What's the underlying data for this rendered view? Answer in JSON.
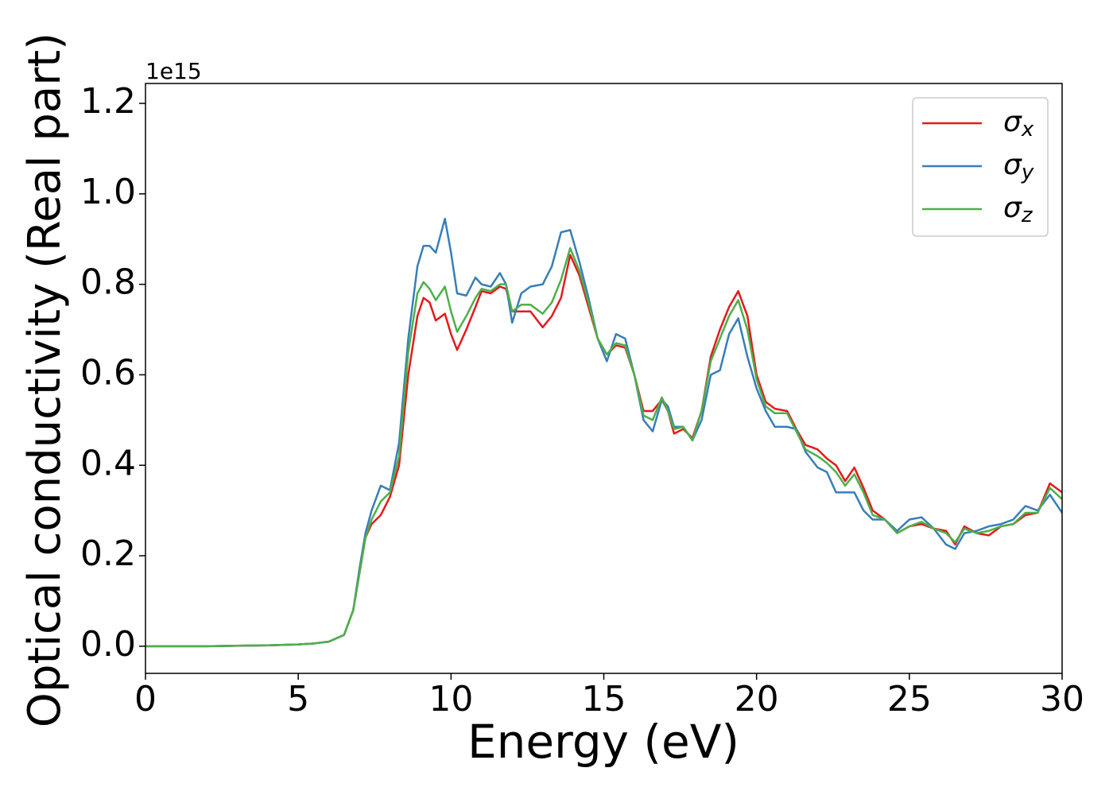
{
  "chart_data": {
    "type": "line",
    "offset_label": "1e15",
    "xlabel": "Energy (eV)",
    "ylabel": "Optical conductivity (Real part)",
    "xlim": [
      0,
      30
    ],
    "ylim": [
      -0.06,
      1.244
    ],
    "xticks": [
      0,
      5,
      10,
      15,
      20,
      25,
      30
    ],
    "yticks": [
      {
        "value": 0,
        "label": "0.0"
      },
      0.2,
      0.4,
      0.6,
      0.8,
      {
        "value": 1,
        "label": "1.0"
      },
      1.2
    ],
    "legend": "upper right",
    "x": [
      0,
      1,
      2,
      3,
      4,
      5,
      5.5,
      6,
      6.5,
      6.8,
      7,
      7.2,
      7.4,
      7.7,
      8,
      8.3,
      8.6,
      8.9,
      9.1,
      9.3,
      9.5,
      9.8,
      10,
      10.2,
      10.5,
      10.8,
      11,
      11.3,
      11.6,
      11.8,
      12,
      12.3,
      12.6,
      13,
      13.3,
      13.6,
      13.9,
      14.2,
      14.5,
      14.8,
      15.1,
      15.4,
      15.7,
      16,
      16.3,
      16.6,
      16.9,
      17.1,
      17.3,
      17.6,
      17.9,
      18.2,
      18.5,
      18.8,
      19.1,
      19.4,
      19.7,
      20,
      20.3,
      20.6,
      21,
      21.3,
      21.6,
      22,
      22.3,
      22.6,
      22.9,
      23.2,
      23.5,
      23.8,
      24.2,
      24.6,
      25,
      25.4,
      25.8,
      26.2,
      26.5,
      26.8,
      27.2,
      27.6,
      28,
      28.4,
      28.8,
      29.2,
      29.6,
      30
    ],
    "series": [
      {
        "name": "σx",
        "color": "#e41a1c",
        "values": [
          0,
          0,
          0,
          0.001,
          0.002,
          0.004,
          0.006,
          0.01,
          0.025,
          0.08,
          0.16,
          0.24,
          0.27,
          0.29,
          0.33,
          0.4,
          0.6,
          0.73,
          0.77,
          0.76,
          0.72,
          0.735,
          0.69,
          0.655,
          0.7,
          0.75,
          0.785,
          0.78,
          0.795,
          0.79,
          0.74,
          0.74,
          0.74,
          0.705,
          0.73,
          0.77,
          0.865,
          0.82,
          0.75,
          0.68,
          0.645,
          0.665,
          0.66,
          0.6,
          0.52,
          0.52,
          0.545,
          0.52,
          0.47,
          0.48,
          0.46,
          0.52,
          0.64,
          0.7,
          0.75,
          0.785,
          0.73,
          0.6,
          0.54,
          0.525,
          0.52,
          0.48,
          0.445,
          0.435,
          0.415,
          0.4,
          0.365,
          0.395,
          0.35,
          0.3,
          0.28,
          0.25,
          0.265,
          0.27,
          0.26,
          0.255,
          0.225,
          0.265,
          0.25,
          0.245,
          0.265,
          0.27,
          0.29,
          0.295,
          0.36,
          0.34
        ]
      },
      {
        "name": "σy",
        "color": "#377eb8",
        "values": [
          0,
          0,
          0,
          0.001,
          0.002,
          0.004,
          0.006,
          0.01,
          0.025,
          0.08,
          0.17,
          0.25,
          0.3,
          0.355,
          0.345,
          0.45,
          0.68,
          0.84,
          0.885,
          0.885,
          0.87,
          0.945,
          0.87,
          0.78,
          0.775,
          0.815,
          0.8,
          0.795,
          0.825,
          0.8,
          0.715,
          0.78,
          0.795,
          0.8,
          0.84,
          0.915,
          0.92,
          0.85,
          0.77,
          0.68,
          0.63,
          0.69,
          0.68,
          0.6,
          0.5,
          0.475,
          0.545,
          0.53,
          0.485,
          0.485,
          0.455,
          0.5,
          0.6,
          0.61,
          0.69,
          0.725,
          0.64,
          0.57,
          0.52,
          0.485,
          0.485,
          0.48,
          0.43,
          0.395,
          0.385,
          0.34,
          0.34,
          0.34,
          0.3,
          0.28,
          0.28,
          0.255,
          0.28,
          0.285,
          0.26,
          0.225,
          0.215,
          0.25,
          0.255,
          0.265,
          0.27,
          0.28,
          0.31,
          0.3,
          0.335,
          0.295
        ]
      },
      {
        "name": "σz",
        "color": "#4daf4a",
        "values": [
          0,
          0,
          0,
          0.001,
          0.002,
          0.004,
          0.006,
          0.01,
          0.025,
          0.08,
          0.16,
          0.24,
          0.28,
          0.32,
          0.34,
          0.42,
          0.65,
          0.78,
          0.805,
          0.79,
          0.765,
          0.795,
          0.74,
          0.695,
          0.73,
          0.77,
          0.79,
          0.785,
          0.8,
          0.8,
          0.74,
          0.755,
          0.755,
          0.735,
          0.76,
          0.81,
          0.88,
          0.83,
          0.76,
          0.68,
          0.645,
          0.67,
          0.665,
          0.6,
          0.51,
          0.5,
          0.55,
          0.52,
          0.48,
          0.485,
          0.455,
          0.52,
          0.63,
          0.68,
          0.73,
          0.765,
          0.7,
          0.59,
          0.53,
          0.515,
          0.515,
          0.475,
          0.435,
          0.42,
          0.405,
          0.385,
          0.355,
          0.38,
          0.34,
          0.29,
          0.28,
          0.25,
          0.265,
          0.275,
          0.26,
          0.25,
          0.23,
          0.26,
          0.25,
          0.255,
          0.265,
          0.27,
          0.295,
          0.295,
          0.35,
          0.325
        ]
      }
    ]
  }
}
